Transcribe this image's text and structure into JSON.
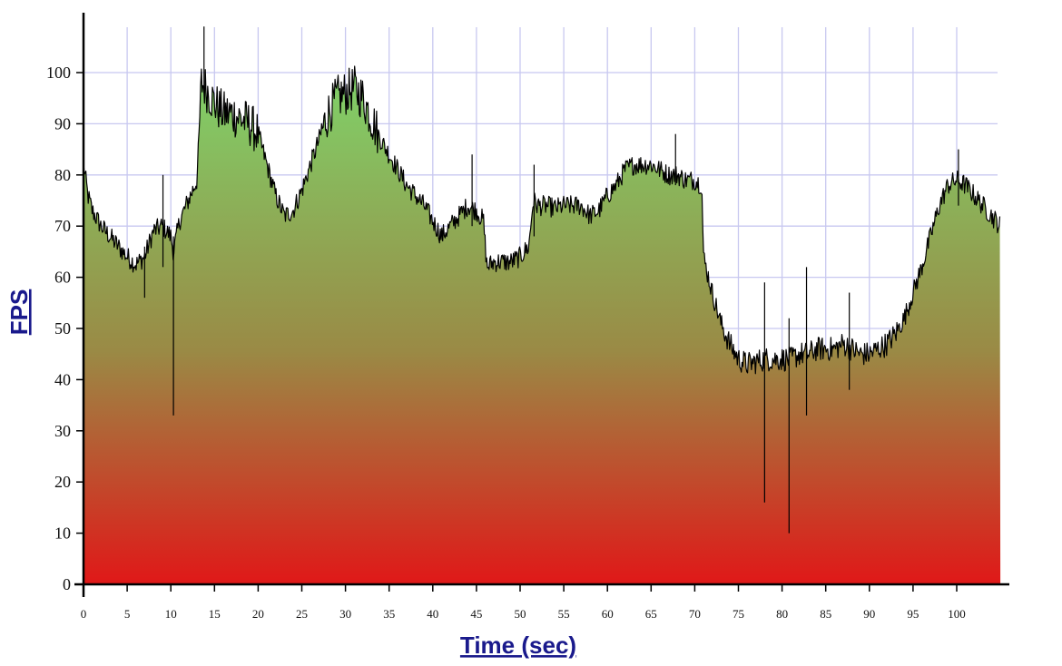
{
  "chart_data": {
    "type": "area",
    "title": "",
    "xlabel": "Time (sec)",
    "ylabel": "FPS",
    "xlim": [
      0,
      105
    ],
    "ylim": [
      0,
      110
    ],
    "x_ticks": [
      0,
      5,
      10,
      15,
      20,
      25,
      30,
      35,
      40,
      45,
      50,
      55,
      60,
      65,
      70,
      75,
      80,
      85,
      90,
      95,
      100
    ],
    "y_ticks": [
      0,
      10,
      20,
      30,
      40,
      50,
      60,
      70,
      80,
      90,
      100
    ],
    "grid": true,
    "legend": "none",
    "colors": {
      "grid": "#c8c8f0",
      "line": "#000000",
      "fill_top": "#7fd36a",
      "fill_mid": "#9a8a45",
      "fill_bottom": "#e01818",
      "axis_title": "#1a1a8c"
    },
    "series": [
      {
        "x": [
          0,
          0.5,
          1,
          2,
          3,
          4,
          5,
          6,
          7,
          8,
          9,
          10,
          10.3,
          11,
          12,
          13,
          13.5,
          14,
          15,
          16,
          17,
          18,
          19,
          20,
          21,
          22,
          23,
          24,
          25,
          26,
          27,
          28,
          29,
          30,
          31,
          32,
          33,
          34,
          35,
          36,
          37,
          38,
          39,
          40,
          41,
          42,
          43,
          44,
          45,
          45.8,
          46.2,
          47,
          48,
          49,
          50,
          51,
          51.5,
          52,
          53,
          54,
          55,
          56,
          57,
          58,
          59,
          60,
          61,
          62,
          63,
          64,
          65,
          66,
          67,
          68,
          69,
          70,
          70.8,
          71,
          72,
          73,
          74,
          75,
          76,
          77,
          78,
          79,
          80,
          81,
          82,
          83,
          84,
          85,
          86,
          87,
          88,
          89,
          90,
          91,
          92,
          93,
          94,
          95,
          96,
          97,
          98,
          99,
          100,
          101,
          102,
          103,
          104,
          105
        ],
        "values": [
          82,
          76,
          73,
          70,
          68,
          66,
          64,
          62.5,
          64,
          69,
          70,
          68,
          65,
          71,
          75,
          79,
          98,
          97,
          94,
          92,
          92,
          91,
          90,
          88,
          82,
          76,
          72,
          73,
          77,
          82,
          87,
          92,
          95,
          96,
          97,
          95,
          91,
          87,
          84,
          81,
          78,
          76,
          74,
          71,
          68,
          70,
          72,
          74,
          73,
          71,
          62,
          63,
          63,
          63,
          64,
          66,
          75,
          74,
          74,
          73.5,
          74,
          74,
          74,
          72,
          73,
          76,
          78,
          81,
          82,
          82,
          82,
          81,
          80,
          80,
          79,
          79,
          78,
          64,
          57,
          51,
          47,
          44,
          43,
          43.5,
          44,
          44,
          44,
          44,
          45,
          45,
          46,
          46,
          46,
          47,
          46,
          45,
          45,
          46,
          47,
          49,
          52,
          57,
          62,
          68,
          74,
          78,
          79,
          78,
          76,
          74,
          72,
          70
        ]
      }
    ],
    "spikes": [
      {
        "x": 9.1,
        "high": 80,
        "low": 62
      },
      {
        "x": 10.3,
        "high": 68,
        "low": 33
      },
      {
        "x": 13.8,
        "high": 109,
        "low": 96
      },
      {
        "x": 7.0,
        "high": 66,
        "low": 56
      },
      {
        "x": 44.5,
        "high": 84,
        "low": 70
      },
      {
        "x": 51.6,
        "high": 82,
        "low": 68
      },
      {
        "x": 67.8,
        "high": 88,
        "low": 78
      },
      {
        "x": 78.0,
        "high": 59,
        "low": 16
      },
      {
        "x": 80.8,
        "high": 52,
        "low": 10
      },
      {
        "x": 82.8,
        "high": 62,
        "low": 33
      },
      {
        "x": 87.7,
        "high": 57,
        "low": 38
      },
      {
        "x": 100.2,
        "high": 85,
        "low": 74
      }
    ]
  }
}
